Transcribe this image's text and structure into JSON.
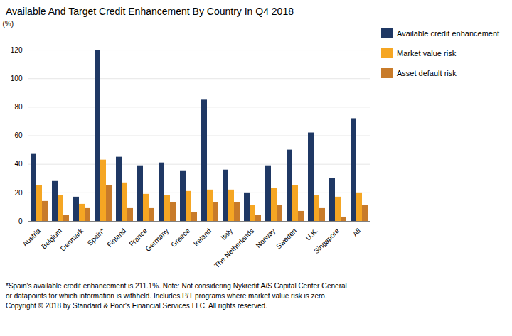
{
  "chart_data": {
    "type": "bar",
    "title": "Available And Target Credit Enhancement By Country  In Q4 2018",
    "ylabel": "(%)",
    "categories": [
      "Austria",
      "Belgium",
      "Denmark",
      "Spain*",
      "Finland",
      "France",
      "Germany",
      "Greece",
      "Ireland",
      "Italy",
      "The Netherlands",
      "Norway",
      "Sweden",
      "U.K.",
      "Singapore",
      "All"
    ],
    "series": [
      {
        "name": "Available credit enhancement",
        "color": "#1F3864",
        "values": [
          47,
          28,
          17,
          120,
          45,
          39,
          41,
          35,
          85,
          36,
          20,
          39,
          50,
          62,
          30,
          72
        ]
      },
      {
        "name": "Market value risk",
        "color": "#F5A623",
        "values": [
          25,
          18,
          12,
          43,
          27,
          19,
          18,
          21,
          22,
          22,
          11,
          23,
          25,
          18,
          17,
          20
        ]
      },
      {
        "name": "Asset default risk",
        "color": "#C87B2A",
        "values": [
          14,
          4,
          9,
          25,
          9,
          9,
          13,
          6,
          13,
          13,
          4,
          11,
          7,
          9,
          3,
          11
        ]
      }
    ],
    "ylim": [
      0,
      130
    ],
    "yticks": [
      0,
      20,
      40,
      60,
      80,
      100,
      120
    ],
    "grid": true,
    "legend": "right",
    "annotations": [
      "*Spain's available credit enhancement is 211.1%. Note:  Not considering Nykredit A/S Capital Center General",
      "or datapoints  for which information is withheld. Includes P/T  programs where market value risk is zero.",
      "Copyright © 2018 by Standard & Poor's Financial Services LLC.  All rights reserved."
    ]
  }
}
